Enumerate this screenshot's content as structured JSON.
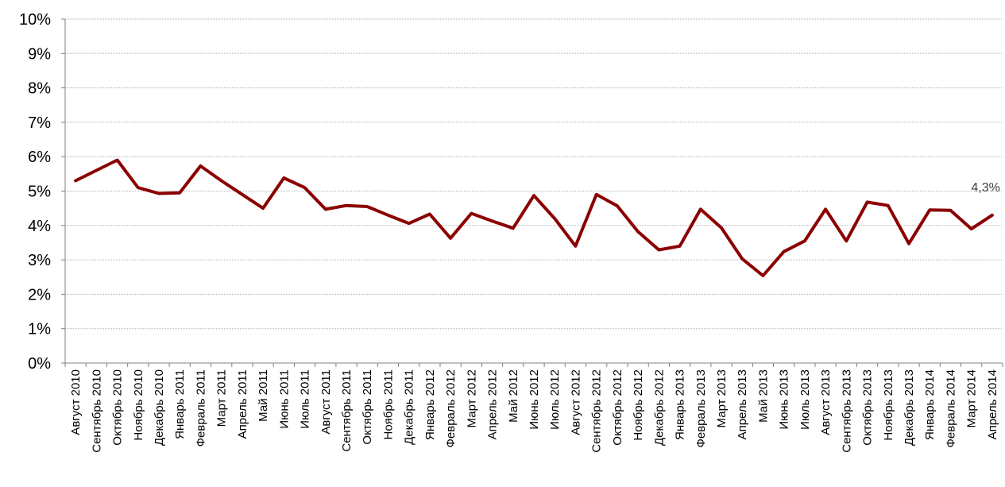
{
  "chart_data": {
    "type": "line",
    "title": "",
    "xlabel": "",
    "ylabel": "",
    "ylim": [
      0,
      10
    ],
    "y_ticks": [
      "0%",
      "1%",
      "2%",
      "3%",
      "4%",
      "5%",
      "6%",
      "7%",
      "8%",
      "9%",
      "10%"
    ],
    "grid": true,
    "legend": "none",
    "categories": [
      "Август 2010",
      "Сентябрь 2010",
      "Октябрь 2010",
      "Ноябрь 2010",
      "Декабрь 2010",
      "Январь 2011",
      "Февраль 2011",
      "Март 2011",
      "Апрель 2011",
      "Май 2011",
      "Июнь 2011",
      "Июль 2011",
      "Август 2011",
      "Сентябрь 2011",
      "Октябрь 2011",
      "Ноябрь 2011",
      "Декабрь 2011",
      "Январь 2012",
      "Февраль 2012",
      "Март 2012",
      "Апрель 2012",
      "Май 2012",
      "Июнь 2012",
      "Июль 2012",
      "Август 2012",
      "Сентябрь 2012",
      "Октябрь 2012",
      "Ноябрь 2012",
      "Декабрь 2012",
      "Январь 2013",
      "Февраль 2013",
      "Март 2013",
      "Апрель 2013",
      "Май 2013",
      "Июнь 2013",
      "Июль 2013",
      "Август 2013",
      "Сентябрь 2013",
      "Октябрь 2013",
      "Ноябрь 2013",
      "Декабрь 2013",
      "Январь 2014",
      "Февраль 2014",
      "Март 2014",
      "Апрель 2014"
    ],
    "series": [
      {
        "color": "#8b0000",
        "values": [
          5.3,
          5.6,
          5.9,
          5.1,
          4.93,
          4.95,
          5.73,
          5.3,
          4.9,
          4.5,
          5.38,
          5.1,
          4.47,
          4.58,
          4.55,
          4.3,
          4.06,
          4.33,
          3.63,
          4.35,
          4.13,
          3.92,
          4.87,
          4.2,
          3.4,
          4.9,
          4.57,
          3.82,
          3.29,
          3.4,
          4.47,
          3.93,
          3.03,
          2.54,
          3.24,
          3.55,
          4.47,
          3.55,
          4.68,
          4.58,
          3.47,
          4.45,
          4.44,
          3.9,
          4.3
        ]
      }
    ],
    "annotations": [
      {
        "text": "4,3%",
        "category_index": 44
      }
    ]
  }
}
